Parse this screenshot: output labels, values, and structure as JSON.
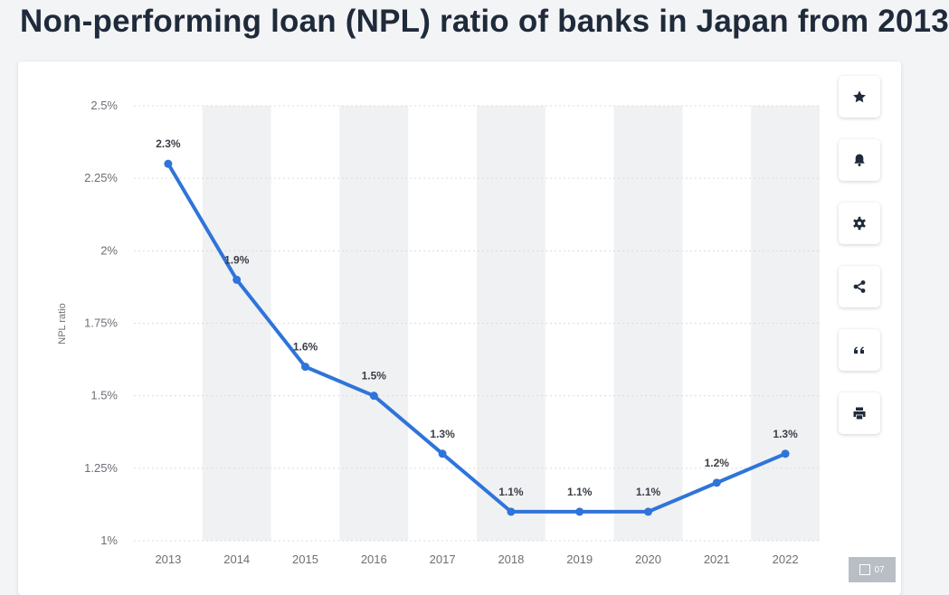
{
  "header": {
    "title": "Non-performing loan (NPL) ratio of banks in Japan from 2013"
  },
  "toolbar": {
    "buttons": [
      {
        "icon": "star-icon"
      },
      {
        "icon": "bell-icon"
      },
      {
        "icon": "gear-icon"
      },
      {
        "icon": "share-icon"
      },
      {
        "icon": "quote-icon"
      },
      {
        "icon": "print-icon"
      }
    ]
  },
  "badge": {
    "text": "07"
  },
  "colors": {
    "line": "#2f74d9",
    "band": "#f0f1f3",
    "grid": "#d9dce0",
    "tick": "#6b6f75",
    "label": "#3a3f46"
  },
  "chart_data": {
    "type": "line",
    "title": "",
    "xlabel": "",
    "ylabel": "NPL ratio",
    "categories": [
      "2013",
      "2014",
      "2015",
      "2016",
      "2017",
      "2018",
      "2019",
      "2020",
      "2021",
      "2022"
    ],
    "values": [
      2.3,
      1.9,
      1.6,
      1.5,
      1.3,
      1.1,
      1.1,
      1.1,
      1.2,
      1.3
    ],
    "value_labels": [
      "2.3%",
      "1.9%",
      "1.6%",
      "1.5%",
      "1.3%",
      "1.1%",
      "1.1%",
      "1.1%",
      "1.2%",
      "1.3%"
    ],
    "ylim": [
      1,
      2.5
    ],
    "yticks": [
      1,
      1.25,
      1.5,
      1.75,
      2,
      2.25,
      2.5
    ],
    "ytick_labels": [
      "1%",
      "1.25%",
      "1.5%",
      "1.75%",
      "2%",
      "2.25%",
      "2.5%"
    ],
    "grid": true,
    "legend": "none"
  }
}
